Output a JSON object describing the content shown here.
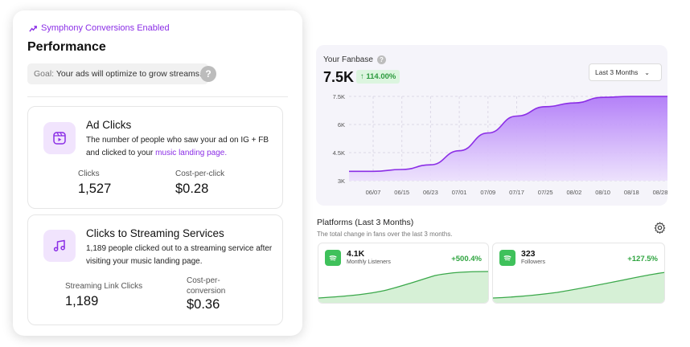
{
  "performance": {
    "symphony_text": "Symphony Conversions Enabled",
    "title": "Performance",
    "goal_label": "Goal:",
    "goal_text": "Your ads will optimize to grow streams.",
    "help": "?"
  },
  "ad_clicks": {
    "title": "Ad Clicks",
    "desc": "The number of people who saw your ad on IG + FB and clicked to your ",
    "link": "music landing page.",
    "clicks_label": "Clicks",
    "clicks_value": "1,527",
    "cpc_label": "Cost-per-click",
    "cpc_value": "$0.28"
  },
  "streaming": {
    "title": "Clicks to Streaming Services",
    "desc": "1,189 people clicked out to a streaming service after visiting your music landing page.",
    "clicks_label": "Streaming Link Clicks",
    "clicks_value": "1,189",
    "cpc_label": "Cost-per-conversion",
    "cpc_value": "$0.36"
  },
  "fanbase": {
    "title": "Your Fanbase",
    "help": "?",
    "value": "7.5K",
    "change": "↑ 114.00%",
    "range": "Last 3 Months"
  },
  "chart_data": {
    "type": "area",
    "x": [
      "06/07",
      "06/15",
      "06/23",
      "07/01",
      "07/09",
      "07/17",
      "07/25",
      "08/02",
      "08/10",
      "08/18",
      "08/28"
    ],
    "y_ticks": [
      "3K",
      "4.5K",
      "6K",
      "7.5K"
    ],
    "ylim": [
      3000,
      7500
    ],
    "series": [
      {
        "values": [
          3500,
          3600,
          3850,
          4600,
          5550,
          6450,
          6950,
          7150,
          7450,
          7500,
          7500
        ]
      }
    ]
  },
  "platforms": {
    "title": "Platforms (Last 3 Months)",
    "subtitle": "The total change in fans over the last 3 months.",
    "cards": [
      {
        "value": "4.1K",
        "label": "Monthly Listeners",
        "change": "+500.4%"
      },
      {
        "value": "323",
        "label": "Followers",
        "change": "+127.5%"
      }
    ]
  },
  "colors": {
    "accent_purple": "#8b2ee6",
    "chart_purple": "#a56bf5",
    "positive_green": "#2ea43f",
    "spotify_green": "#3fc15b"
  }
}
